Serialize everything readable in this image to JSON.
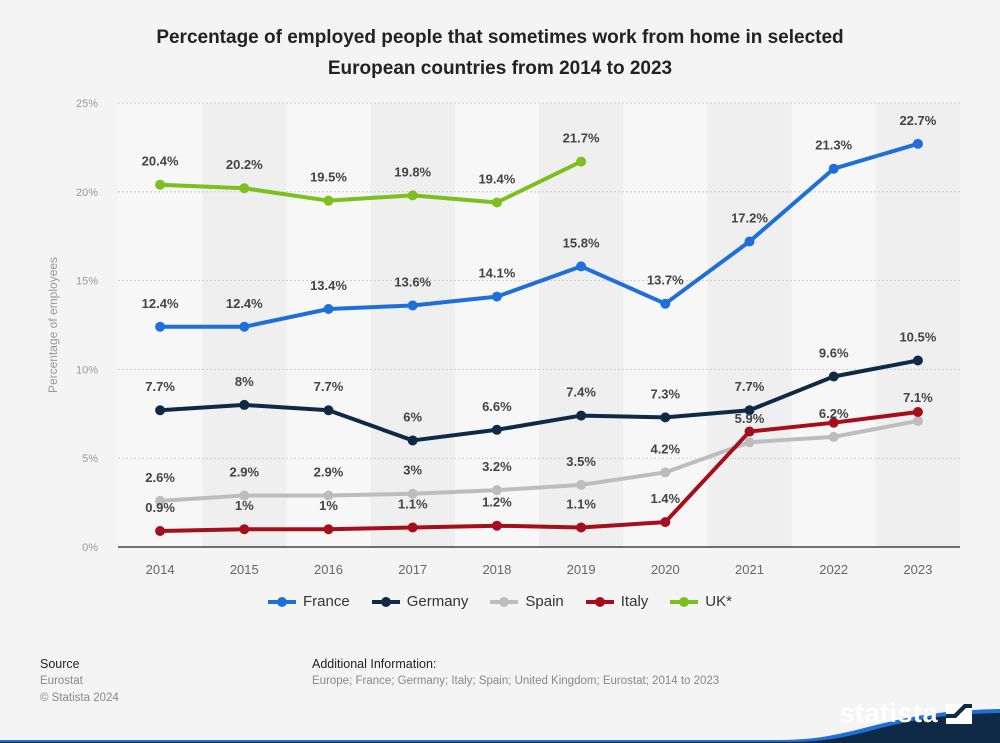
{
  "chart_data": {
    "type": "line",
    "title": "Percentage of employed people that sometimes work from home in selected European countries from 2014 to 2023",
    "title_lines": [
      "Percentage of employed people that sometimes work from home in selected",
      "European countries from 2014 to 2023"
    ],
    "xlabel": "",
    "ylabel": "Percentage of employees",
    "ylim": [
      0,
      25
    ],
    "yticks": [
      0,
      5,
      10,
      15,
      20,
      25
    ],
    "ytick_labels": [
      "0%",
      "5%",
      "10%",
      "15%",
      "20%",
      "25%"
    ],
    "categories": [
      "2014",
      "2015",
      "2016",
      "2017",
      "2018",
      "2019",
      "2020",
      "2021",
      "2022",
      "2023"
    ],
    "grid": true,
    "legend_position": "bottom",
    "series": [
      {
        "name": "France",
        "color": "#1f6fd9",
        "values": [
          12.4,
          12.4,
          13.4,
          13.6,
          14.1,
          15.8,
          13.7,
          17.2,
          21.3,
          22.7
        ],
        "labels": [
          "12.4%",
          "12.4%",
          "13.4%",
          "13.6%",
          "14.1%",
          "15.8%",
          "13.7%",
          "17.2%",
          "21.3%",
          "22.7%"
        ]
      },
      {
        "name": "Germany",
        "color": "#0e2a47",
        "values": [
          7.7,
          8.0,
          7.7,
          6.0,
          6.6,
          7.4,
          7.3,
          7.7,
          9.6,
          10.5
        ],
        "labels": [
          "7.7%",
          "8%",
          "7.7%",
          "6%",
          "6.6%",
          "7.4%",
          "7.3%",
          "7.7%",
          "9.6%",
          "10.5%"
        ]
      },
      {
        "name": "Spain",
        "color": "#bdbdbd",
        "values": [
          2.6,
          2.9,
          2.9,
          3.0,
          3.2,
          3.5,
          4.2,
          5.9,
          6.2,
          7.1
        ],
        "labels": [
          "2.6%",
          "2.9%",
          "2.9%",
          "3%",
          "3.2%",
          "3.5%",
          "4.2%",
          "5.9%",
          "6.2%",
          "7.1%"
        ]
      },
      {
        "name": "Italy",
        "color": "#a50f1c",
        "values": [
          0.9,
          1.0,
          1.0,
          1.1,
          1.2,
          1.1,
          1.4,
          6.5,
          7.0,
          7.6
        ],
        "labels": [
          "0.9%",
          "1%",
          "1%",
          "1.1%",
          "1.2%",
          "1.1%",
          "1.4%",
          null,
          null,
          null
        ]
      },
      {
        "name": "UK*",
        "color": "#7cbf1f",
        "values": [
          20.4,
          20.2,
          19.5,
          19.8,
          19.4,
          21.7,
          null,
          null,
          null,
          null
        ],
        "labels": [
          "20.4%",
          "20.2%",
          "19.5%",
          "19.8%",
          "19.4%",
          "21.7%",
          null,
          null,
          null,
          null
        ]
      }
    ]
  },
  "footer": {
    "source_heading": "Source",
    "source_name": "Eurostat",
    "copyright": "© Statista 2024",
    "additional_heading": "Additional Information:",
    "additional_text": "Europe; France; Germany; Italy; Spain; United Kingdom; Eurostat; 2014 to 2023"
  },
  "brand": {
    "logo_text": "statista"
  }
}
